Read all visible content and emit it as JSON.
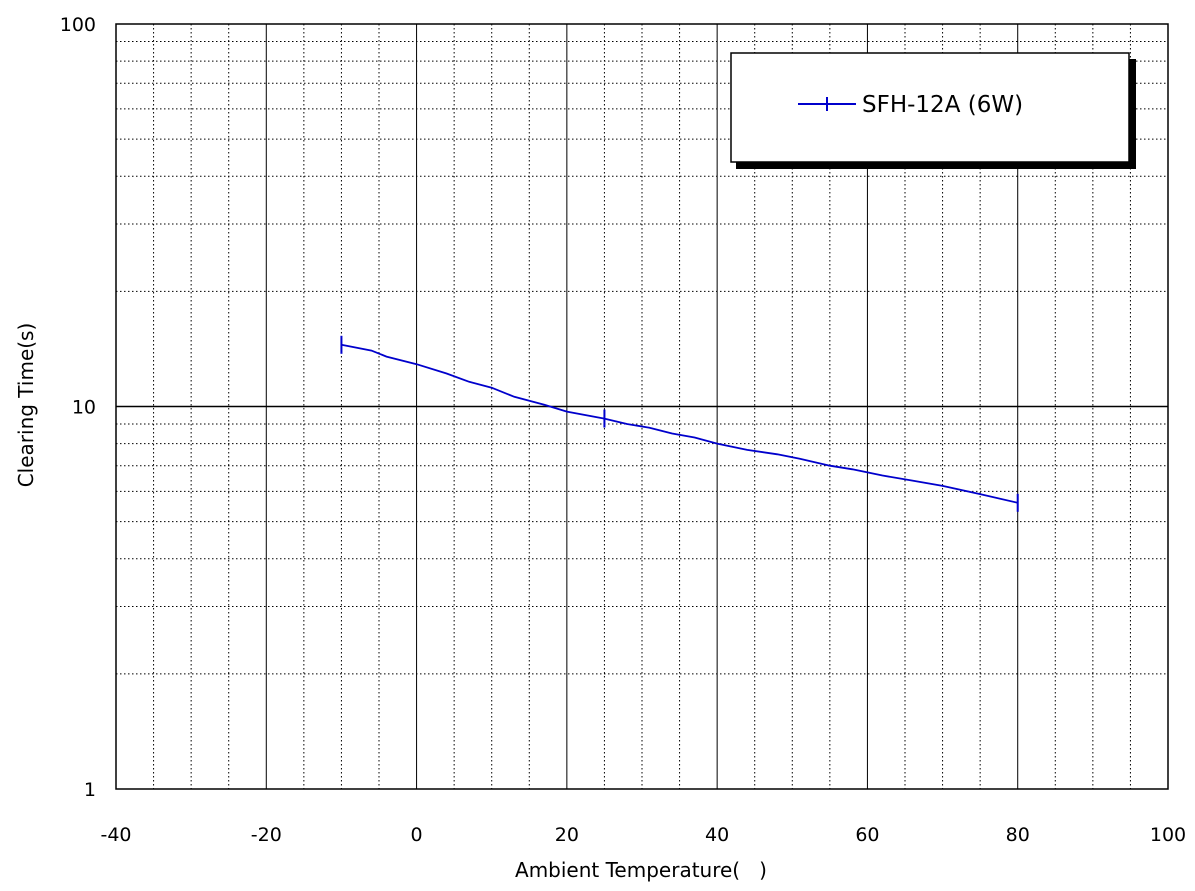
{
  "chart_data": {
    "type": "line",
    "xlabel": "Ambient Temperature(   )",
    "ylabel": "Clearing Time(s)",
    "x_ticks": [
      "-40",
      "-20",
      "0",
      "20",
      "40",
      "60",
      "80",
      "100"
    ],
    "y_ticks": [
      "1",
      "10",
      "100"
    ],
    "xlim": [
      -40,
      100
    ],
    "ylim": [
      1,
      100
    ],
    "y_scale": "log",
    "grid": true,
    "legend_position": "top-right",
    "series": [
      {
        "name": "SFH-12A (6W)",
        "color": "#0000cc",
        "marker": "vertical-tick",
        "x": [
          -10,
          -6,
          -4,
          0,
          4,
          7,
          10,
          13,
          17,
          20,
          25,
          28,
          31,
          34,
          37,
          40,
          44,
          48,
          51,
          55,
          58,
          62,
          66,
          70,
          75,
          80
        ],
        "y": [
          14.5,
          14.0,
          13.5,
          12.9,
          12.2,
          11.6,
          11.2,
          10.6,
          10.1,
          9.7,
          9.3,
          9.0,
          8.8,
          8.5,
          8.3,
          8.0,
          7.7,
          7.5,
          7.3,
          7.0,
          6.85,
          6.6,
          6.4,
          6.2,
          5.9,
          5.6
        ],
        "marker_x": [
          -10,
          25,
          80
        ],
        "marker_y": [
          14.5,
          9.3,
          5.6
        ]
      }
    ]
  }
}
